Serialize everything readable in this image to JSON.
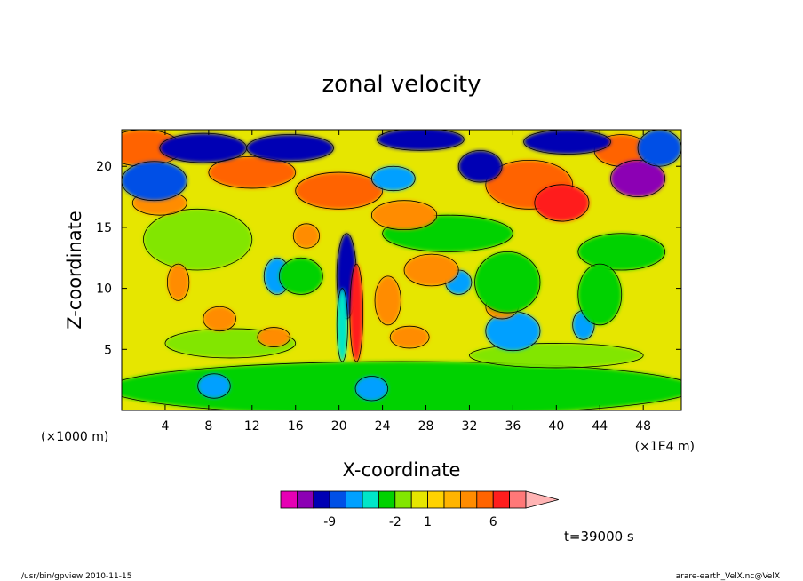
{
  "chart_data": {
    "type": "heatmap",
    "title": "zonal velocity",
    "xlabel": "X-coordinate",
    "ylabel": "Z-coordinate",
    "x_unit_left": "(×1000 m)",
    "x_unit_right": "(×1E4 m)",
    "xlim": [
      0,
      51.5
    ],
    "ylim": [
      0,
      23
    ],
    "x_ticks": [
      4,
      8,
      12,
      16,
      20,
      24,
      28,
      32,
      36,
      40,
      44,
      48
    ],
    "x_tick_labels": [
      "4",
      "8",
      "12",
      "16",
      "20",
      "24",
      "28",
      "32",
      "36",
      "40",
      "44",
      "48"
    ],
    "y_ticks": [
      5,
      10,
      15,
      20
    ],
    "y_tick_labels": [
      "5",
      "10",
      "15",
      "20"
    ],
    "colorbar": {
      "levels": [
        -15,
        -12,
        -9,
        -6,
        -4,
        -3,
        -2,
        -1,
        0,
        1,
        2,
        3,
        4,
        6,
        9,
        12
      ],
      "colors": [
        "#e600b4",
        "#8c00b4",
        "#0000b4",
        "#0050e6",
        "#00a0ff",
        "#00e6c8",
        "#00d200",
        "#82e600",
        "#e6e600",
        "#ffd200",
        "#ffb400",
        "#ff8c00",
        "#ff6400",
        "#ff1e1e",
        "#ff7878",
        "#ffb4b4"
      ],
      "tick_labels": [
        "-9",
        "-2",
        "1",
        "6"
      ]
    }
  },
  "time_label": "t=39000 s",
  "footer_left": "/usr/bin/gpview  2010-11-15",
  "footer_right": "arare-earth_VelX.nc@VelX"
}
